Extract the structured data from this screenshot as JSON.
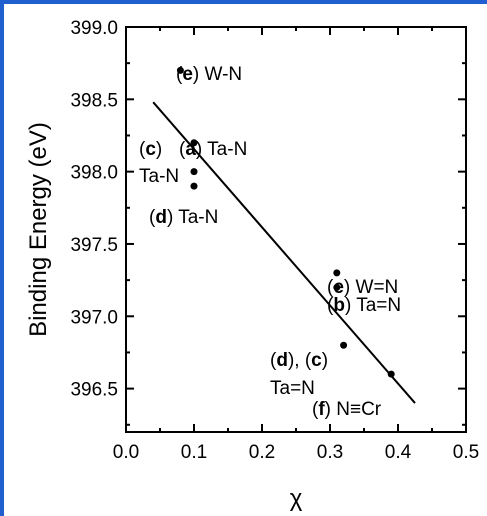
{
  "chart_data": {
    "type": "scatter",
    "xlabel": "χ",
    "ylabel": "Binding Energy (eV)",
    "xlim": [
      0.0,
      0.5
    ],
    "ylim": [
      396.2,
      399.0
    ],
    "xticks": [
      "0.0",
      "0.1",
      "0.2",
      "0.3",
      "0.4",
      "0.5"
    ],
    "yticks": [
      "396.5",
      "397.0",
      "397.5",
      "398.0",
      "398.5",
      "399.0"
    ],
    "grid": false,
    "points": [
      {
        "x": 0.08,
        "y": 398.7
      },
      {
        "x": 0.1,
        "y": 398.2
      },
      {
        "x": 0.1,
        "y": 398.0
      },
      {
        "x": 0.1,
        "y": 397.9
      },
      {
        "x": 0.31,
        "y": 397.3
      },
      {
        "x": 0.31,
        "y": 397.2
      },
      {
        "x": 0.32,
        "y": 396.8
      },
      {
        "x": 0.39,
        "y": 396.6
      }
    ],
    "fit_line": {
      "x": [
        0.04,
        0.425
      ],
      "y": [
        398.48,
        396.4
      ]
    },
    "annotations": [
      {
        "parts": [
          {
            "text": "(",
            "bold": false
          },
          {
            "text": "e",
            "bold": true
          },
          {
            "text": ") W-N",
            "bold": false
          }
        ]
      },
      {
        "parts": [
          {
            "text": "(",
            "bold": false
          },
          {
            "text": "a",
            "bold": true
          },
          {
            "text": ") Ta-N",
            "bold": false
          }
        ]
      },
      {
        "parts": [
          {
            "text": "(",
            "bold": false
          },
          {
            "text": "c",
            "bold": true
          },
          {
            "text": ")",
            "bold": false
          }
        ]
      },
      {
        "parts": [
          {
            "text": "Ta-N",
            "bold": false
          }
        ]
      },
      {
        "parts": [
          {
            "text": "(",
            "bold": false
          },
          {
            "text": "d",
            "bold": true
          },
          {
            "text": ") Ta-N",
            "bold": false
          }
        ]
      },
      {
        "parts": [
          {
            "text": "(",
            "bold": false
          },
          {
            "text": "e",
            "bold": true
          },
          {
            "text": ") W=N",
            "bold": false
          }
        ]
      },
      {
        "parts": [
          {
            "text": "(",
            "bold": false
          },
          {
            "text": "b",
            "bold": true
          },
          {
            "text": ") Ta=N",
            "bold": false
          }
        ]
      },
      {
        "parts": [
          {
            "text": "(",
            "bold": false
          },
          {
            "text": "d",
            "bold": true
          },
          {
            "text": "), (",
            "bold": false
          },
          {
            "text": "c",
            "bold": true
          },
          {
            "text": ")",
            "bold": false
          }
        ]
      },
      {
        "parts": [
          {
            "text": "Ta=N",
            "bold": false
          }
        ]
      },
      {
        "parts": [
          {
            "text": "(",
            "bold": false
          },
          {
            "text": "f",
            "bold": true
          },
          {
            "text": ") N≡Cr",
            "bold": false
          }
        ]
      }
    ]
  }
}
